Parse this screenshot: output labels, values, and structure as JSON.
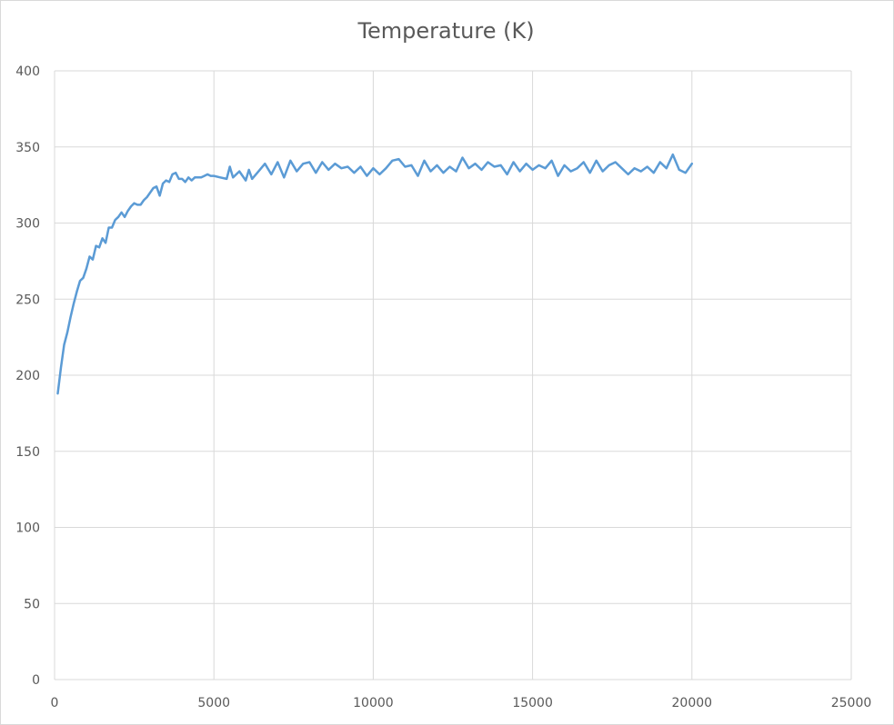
{
  "chart_data": {
    "type": "line",
    "title": "Temperature (K)",
    "xlabel": "",
    "ylabel": "",
    "xlim": [
      0,
      25000
    ],
    "ylim": [
      0,
      400
    ],
    "x_ticks": [
      0,
      5000,
      10000,
      15000,
      20000,
      25000
    ],
    "y_ticks": [
      0,
      50,
      100,
      150,
      200,
      250,
      300,
      350,
      400
    ],
    "grid": true,
    "legend": "none",
    "series_color": "#5b9bd5",
    "series": [
      {
        "x": [
          100,
          200,
          300,
          400,
          500,
          600,
          700,
          800,
          900,
          1000,
          1100,
          1200,
          1300,
          1400,
          1500,
          1600,
          1700,
          1800,
          1900,
          2000,
          2100,
          2200,
          2300,
          2400,
          2500,
          2600,
          2700,
          2800,
          2900,
          3000,
          3100,
          3200,
          3300,
          3400,
          3500,
          3600,
          3700,
          3800,
          3900,
          4000,
          4100,
          4200,
          4300,
          4400,
          4500,
          4600,
          4700,
          4800,
          4900,
          5000,
          5200,
          5400,
          5500,
          5600,
          5800,
          6000,
          6100,
          6200,
          6400,
          6600,
          6800,
          7000,
          7200,
          7400,
          7600,
          7800,
          8000,
          8200,
          8400,
          8600,
          8800,
          9000,
          9200,
          9400,
          9600,
          9800,
          10000,
          10200,
          10400,
          10600,
          10800,
          11000,
          11200,
          11400,
          11600,
          11800,
          12000,
          12200,
          12400,
          12600,
          12800,
          13000,
          13200,
          13400,
          13600,
          13800,
          14000,
          14200,
          14400,
          14600,
          14800,
          15000,
          15200,
          15400,
          15600,
          15800,
          16000,
          16200,
          16400,
          16600,
          16800,
          17000,
          17200,
          17400,
          17600,
          17800,
          18000,
          18200,
          18400,
          18600,
          18800,
          19000,
          19200,
          19400,
          19600,
          19800,
          20000
        ],
        "y": [
          188,
          205,
          220,
          228,
          238,
          247,
          255,
          262,
          264,
          270,
          278,
          276,
          285,
          284,
          290,
          287,
          297,
          297,
          302,
          304,
          307,
          304,
          308,
          311,
          313,
          312,
          312,
          315,
          317,
          320,
          323,
          324,
          318,
          326,
          328,
          327,
          332,
          333,
          329,
          329,
          327,
          330,
          328,
          330,
          330,
          330,
          331,
          332,
          331,
          331,
          330,
          329,
          337,
          330,
          334,
          328,
          335,
          329,
          334,
          339,
          332,
          340,
          330,
          341,
          334,
          339,
          340,
          333,
          340,
          335,
          339,
          336,
          337,
          333,
          337,
          331,
          336,
          332,
          336,
          341,
          342,
          337,
          338,
          331,
          341,
          334,
          338,
          333,
          337,
          334,
          343,
          336,
          339,
          335,
          340,
          337,
          338,
          332,
          340,
          334,
          339,
          335,
          338,
          336,
          341,
          331,
          338,
          334,
          336,
          340,
          333,
          341,
          334,
          338,
          340,
          336,
          332,
          336,
          334,
          337,
          333,
          340,
          336,
          345,
          335,
          333,
          339
        ],
        "name": ""
      }
    ]
  }
}
